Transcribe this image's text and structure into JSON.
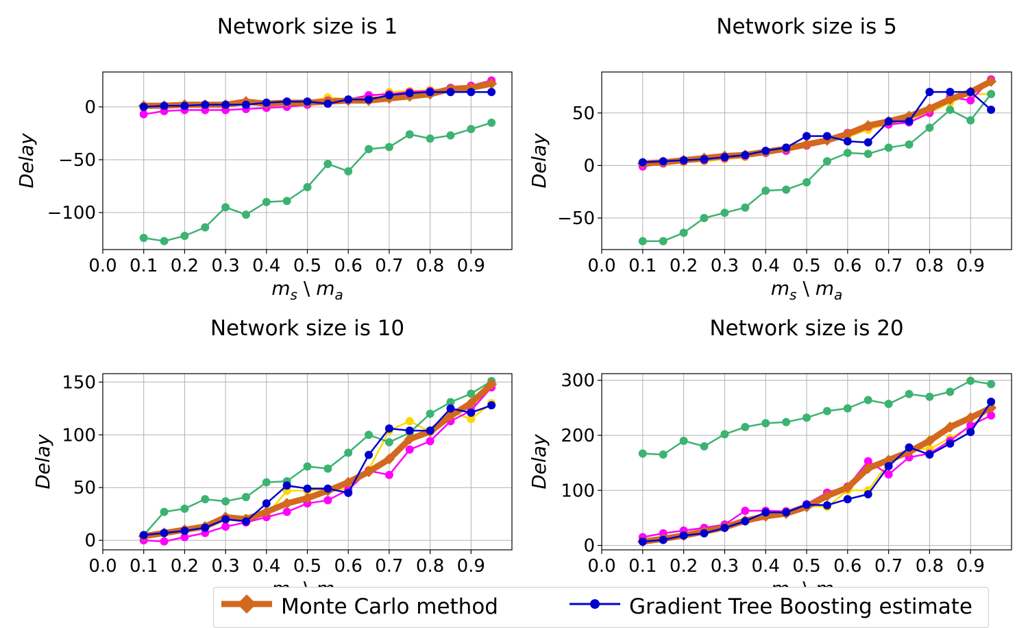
{
  "chart_data": [
    {
      "type": "line",
      "title": "Network size is 1",
      "xlabel": "m_s \\ m_a",
      "ylabel": "Delay",
      "xlim": [
        0.0,
        1.0
      ],
      "ylim": [
        -135,
        33
      ],
      "xticks": [
        "0.0",
        "0.1",
        "0.2",
        "0.3",
        "0.4",
        "0.5",
        "0.6",
        "0.7",
        "0.8",
        "0.9"
      ],
      "yticks": [
        0,
        -50,
        -100
      ],
      "ytick_labels": [
        "0",
        "−50",
        "−100"
      ],
      "grid": true,
      "x": [
        0.1,
        0.15,
        0.2,
        0.25,
        0.3,
        0.35,
        0.4,
        0.45,
        0.5,
        0.55,
        0.6,
        0.65,
        0.7,
        0.75,
        0.8,
        0.85,
        0.9,
        0.95
      ],
      "series": [
        {
          "name": "Monte Carlo method",
          "color": "#d2691e",
          "values": [
            1,
            1,
            2,
            2,
            2,
            5,
            3,
            4,
            4,
            5,
            6,
            6,
            8,
            10,
            12,
            17,
            18,
            22
          ]
        },
        {
          "color": "#ffd700",
          "values": [
            -1,
            0,
            0,
            1,
            1,
            2,
            3,
            4,
            5,
            9,
            7,
            9,
            14,
            15,
            16,
            17,
            19,
            23
          ]
        },
        {
          "color": "#3cb371",
          "values": [
            -124,
            -127,
            -122,
            -114,
            -95,
            -102,
            -90,
            -89,
            -76,
            -54,
            -61,
            -40,
            -38,
            -26,
            -30,
            -27,
            -21,
            -15
          ]
        },
        {
          "name": "Gradient Tree Boosting estimate",
          "color": "#0000cd",
          "values": [
            0,
            1,
            1,
            2,
            2,
            2,
            4,
            5,
            5,
            3,
            7,
            7,
            11,
            13,
            14,
            14,
            14,
            14
          ]
        },
        {
          "color": "#ff00ff",
          "values": [
            -7,
            -4,
            -3,
            -3,
            -3,
            -2,
            -1,
            0,
            2,
            6,
            7,
            11,
            12,
            14,
            15,
            18,
            20,
            25
          ]
        }
      ]
    },
    {
      "type": "line",
      "title": "Network size is 5",
      "xlabel": "m_s \\ m_a",
      "ylabel": "Delay",
      "xlim": [
        0.0,
        1.0
      ],
      "ylim": [
        -80,
        89
      ],
      "xticks": [
        "0.0",
        "0.1",
        "0.2",
        "0.3",
        "0.4",
        "0.5",
        "0.6",
        "0.7",
        "0.8",
        "0.9"
      ],
      "yticks": [
        50,
        0,
        -50
      ],
      "ytick_labels": [
        "50",
        "0",
        "−50"
      ],
      "grid": true,
      "x": [
        0.1,
        0.15,
        0.2,
        0.25,
        0.3,
        0.35,
        0.4,
        0.45,
        0.5,
        0.55,
        0.6,
        0.65,
        0.7,
        0.75,
        0.8,
        0.85,
        0.9,
        0.95
      ],
      "series": [
        {
          "name": "Monte Carlo method",
          "color": "#d2691e",
          "values": [
            2,
            3,
            5,
            7,
            9,
            10,
            13,
            16,
            20,
            24,
            30,
            38,
            42,
            47,
            54,
            63,
            70,
            80
          ]
        },
        {
          "color": "#ffd700",
          "values": [
            1,
            2,
            3,
            4,
            6,
            8,
            12,
            15,
            20,
            25,
            27,
            34,
            40,
            44,
            50,
            60,
            68,
            68
          ]
        },
        {
          "color": "#3cb371",
          "values": [
            -72,
            -72,
            -64,
            -50,
            -45,
            -40,
            -24,
            -23,
            -16,
            4,
            12,
            11,
            17,
            20,
            36,
            53,
            43,
            68
          ]
        },
        {
          "name": "Gradient Tree Boosting estimate",
          "color": "#0000cd",
          "values": [
            3,
            4,
            5,
            6,
            8,
            10,
            14,
            17,
            28,
            28,
            23,
            22,
            42,
            42,
            70,
            70,
            70,
            53
          ]
        },
        {
          "color": "#ff00ff",
          "values": [
            -1,
            2,
            4,
            5,
            7,
            9,
            12,
            14,
            19,
            26,
            31,
            37,
            39,
            41,
            50,
            65,
            62,
            82
          ]
        }
      ]
    },
    {
      "type": "line",
      "title": "Network size is 10",
      "xlabel": "m_s \\ m_a",
      "ylabel": "Delay",
      "xlim": [
        0.0,
        1.0
      ],
      "ylim": [
        -9,
        158
      ],
      "xticks": [
        "0.0",
        "0.1",
        "0.2",
        "0.3",
        "0.4",
        "0.5",
        "0.6",
        "0.7",
        "0.8",
        "0.9"
      ],
      "yticks": [
        150,
        100,
        50,
        0
      ],
      "ytick_labels": [
        "150",
        "100",
        "50",
        "0"
      ],
      "grid": true,
      "x": [
        0.1,
        0.15,
        0.2,
        0.25,
        0.3,
        0.35,
        0.4,
        0.45,
        0.5,
        0.55,
        0.6,
        0.65,
        0.7,
        0.75,
        0.8,
        0.85,
        0.9,
        0.95
      ],
      "series": [
        {
          "name": "Monte Carlo method",
          "color": "#d2691e",
          "values": [
            4,
            7,
            10,
            13,
            22,
            20,
            27,
            35,
            40,
            47,
            55,
            65,
            77,
            96,
            103,
            118,
            130,
            148
          ]
        },
        {
          "color": "#ffd700",
          "values": [
            5,
            7,
            9,
            12,
            19,
            21,
            24,
            47,
            47,
            49,
            48,
            67,
            104,
            113,
            103,
            122,
            115,
            130
          ]
        },
        {
          "color": "#3cb371",
          "values": [
            5,
            27,
            30,
            39,
            37,
            41,
            55,
            56,
            70,
            68,
            83,
            100,
            93,
            102,
            120,
            131,
            139,
            151
          ]
        },
        {
          "name": "Gradient Tree Boosting estimate",
          "color": "#0000cd",
          "values": [
            5,
            7,
            9,
            12,
            20,
            18,
            35,
            52,
            49,
            49,
            45,
            81,
            106,
            104,
            104,
            125,
            121,
            128
          ]
        },
        {
          "color": "#ff00ff",
          "values": [
            0,
            -1,
            3,
            7,
            13,
            17,
            22,
            27,
            35,
            38,
            48,
            66,
            62,
            86,
            94,
            113,
            123,
            145
          ]
        }
      ]
    },
    {
      "type": "line",
      "title": "Network size is 20",
      "xlabel": "m_s \\ m_a",
      "ylabel": "Delay",
      "xlim": [
        0.0,
        1.0
      ],
      "ylim": [
        -8,
        312
      ],
      "xticks": [
        "0.0",
        "0.1",
        "0.2",
        "0.3",
        "0.4",
        "0.5",
        "0.6",
        "0.7",
        "0.8",
        "0.9"
      ],
      "yticks": [
        300,
        200,
        100,
        0
      ],
      "ytick_labels": [
        "300",
        "200",
        "100",
        "0"
      ],
      "grid": true,
      "x": [
        0.1,
        0.15,
        0.2,
        0.25,
        0.3,
        0.35,
        0.4,
        0.45,
        0.5,
        0.55,
        0.6,
        0.65,
        0.7,
        0.75,
        0.8,
        0.85,
        0.9,
        0.95
      ],
      "series": [
        {
          "name": "Monte Carlo method",
          "color": "#d2691e",
          "values": [
            7,
            12,
            18,
            25,
            33,
            45,
            53,
            58,
            70,
            90,
            105,
            140,
            155,
            170,
            190,
            215,
            232,
            250
          ]
        },
        {
          "color": "#ffd700",
          "values": [
            10,
            15,
            18,
            25,
            35,
            45,
            58,
            62,
            72,
            70,
            100,
            100,
            150,
            175,
            175,
            195,
            215,
            250
          ]
        },
        {
          "color": "#3cb371",
          "values": [
            167,
            165,
            190,
            180,
            202,
            215,
            222,
            224,
            232,
            244,
            249,
            264,
            257,
            275,
            270,
            279,
            299,
            293
          ]
        },
        {
          "name": "Gradient Tree Boosting estimate",
          "color": "#0000cd",
          "values": [
            7,
            10,
            18,
            22,
            32,
            44,
            60,
            60,
            74,
            73,
            84,
            93,
            144,
            178,
            165,
            185,
            206,
            261
          ]
        },
        {
          "color": "#ff00ff",
          "values": [
            15,
            22,
            27,
            32,
            38,
            63,
            63,
            62,
            75,
            96,
            107,
            153,
            129,
            160,
            167,
            190,
            218,
            236
          ]
        }
      ]
    }
  ],
  "legend": {
    "items": [
      {
        "label": "Monte Carlo method",
        "color": "#d2691e",
        "marker": "diamond"
      },
      {
        "label": "Gradient Tree Boosting estimate",
        "color": "#0000cd",
        "marker": "circle"
      }
    ]
  }
}
